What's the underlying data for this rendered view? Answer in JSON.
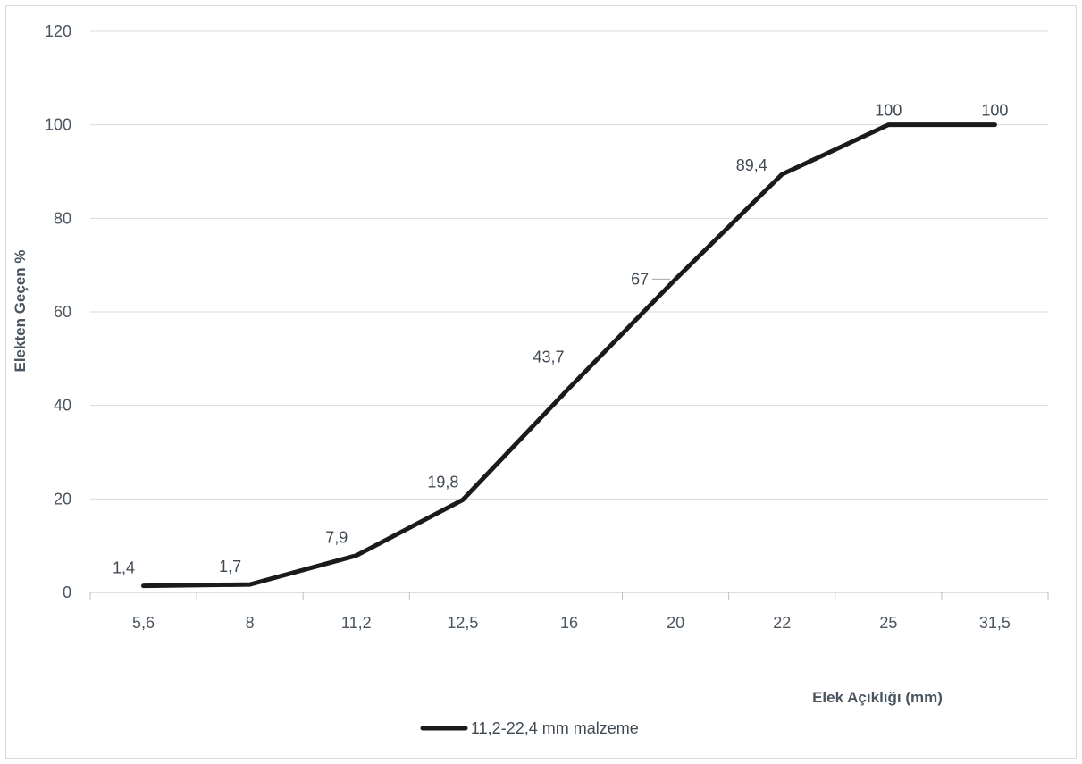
{
  "chart_data": {
    "type": "line",
    "title": "",
    "xlabel": "Elek Açıklığı (mm)",
    "ylabel": "Elekten Geçen %",
    "categories": [
      "5,6",
      "8",
      "11,2",
      "12,5",
      "16",
      "20",
      "22",
      "25",
      "31,5"
    ],
    "series": [
      {
        "name": "11,2-22,4 mm malzeme",
        "values": [
          1.4,
          1.7,
          7.9,
          19.8,
          43.7,
          67,
          89.4,
          100,
          100
        ],
        "data_labels": [
          "1,4",
          "1,7",
          "7,9",
          "19,8",
          "43,7",
          "67",
          "89,4",
          "100",
          "100"
        ],
        "color": "#1a1a1a"
      }
    ],
    "ylim": [
      0,
      120
    ],
    "yticks": [
      0,
      20,
      40,
      60,
      80,
      100,
      120
    ],
    "grid": true,
    "legend_position": "bottom",
    "colors": {
      "gridline": "#d9d9d9",
      "axis": "#bfbfbf",
      "text": "#4a5560"
    }
  }
}
